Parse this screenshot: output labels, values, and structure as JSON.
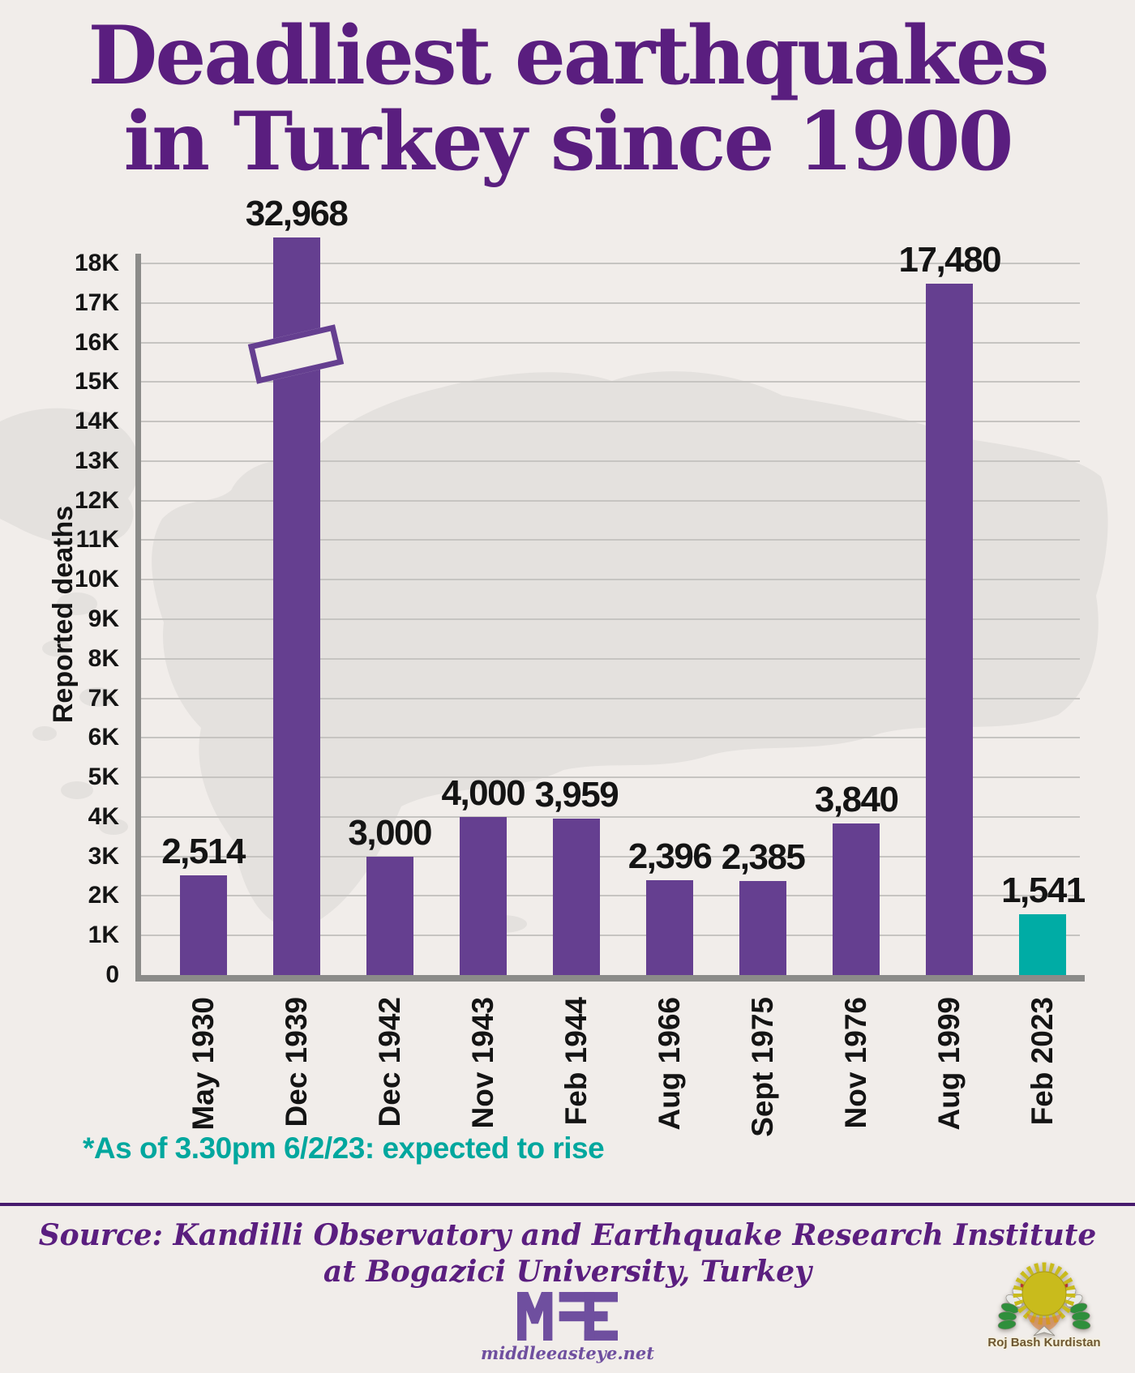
{
  "title": {
    "line1": "Deadliest earthquakes",
    "line2": "in Turkey since 1900"
  },
  "chart_data": {
    "type": "bar",
    "title": "Deadliest earthquakes in Turkey since 1900",
    "ylabel": "Reported deaths",
    "xlabel": "",
    "categories": [
      "May 1930",
      "Dec 1939",
      "Dec 1942",
      "Nov 1943",
      "Feb 1944",
      "Aug 1966",
      "Sept 1975",
      "Nov 1976",
      "Aug 1999",
      "Feb 2023"
    ],
    "values": [
      2514,
      32968,
      3000,
      4000,
      3959,
      2396,
      2385,
      3840,
      17480,
      1541
    ],
    "value_labels": [
      "2,514",
      "32,968",
      "3,000",
      "4,000",
      "3,959",
      "2,396",
      "2,385",
      "3,840",
      "17,480",
      "1,541"
    ],
    "yticks": [
      "0",
      "1K",
      "2K",
      "3K",
      "4K",
      "5K",
      "6K",
      "7K",
      "8K",
      "9K",
      "10K",
      "11K",
      "12K",
      "13K",
      "14K",
      "15K",
      "16K",
      "17K",
      "18K"
    ],
    "ylim": [
      0,
      18000
    ],
    "grid": true,
    "legend": "none",
    "axis_break": "Dec 1939 bar (32,968) exceeds the 18K axis and is shown with a break marker",
    "highlight_category": "Feb 2023"
  },
  "footnote": "*As of 3.30pm 6/2/23: expected to rise",
  "source": {
    "line1": "Source: Kandilli Observatory and Earthquake Research Institute",
    "line2": "at Bogazici University, Turkey"
  },
  "branding": {
    "mee_url": "middleeasteye.net",
    "watermark": "Roj Bash Kurdistan"
  },
  "colors": {
    "background": "#f1edea",
    "map_silhouette": "#e4e1de",
    "bar_purple": "#653f90",
    "bar_teal": "#00aca5",
    "title_purple": "#5a1e7f",
    "footnote_teal": "#00a79e",
    "axis_gray": "#8b8b89",
    "gridline_gray": "#c6c4c1",
    "label_black": "#141414",
    "mee_purple": "#6f4f9f",
    "kurdistan_red": "#b8322f",
    "kurdistan_white": "#e9e9e7",
    "kurdistan_green": "#2f8f3c",
    "kurdistan_sun": "#c9bb1c"
  }
}
